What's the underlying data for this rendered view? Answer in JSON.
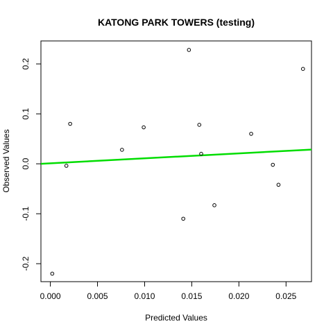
{
  "chart_data": {
    "type": "scatter",
    "title": "KATONG PARK TOWERS (testing)",
    "xlabel": "Predicted Values",
    "ylabel": "Observed Values",
    "xlim": [
      -0.001,
      0.0277
    ],
    "ylim": [
      -0.236,
      0.246
    ],
    "x_ticks": [
      0.0,
      0.005,
      0.01,
      0.015,
      0.02,
      0.025
    ],
    "x_tick_labels": [
      "0.000",
      "0.005",
      "0.010",
      "0.015",
      "0.020",
      "0.025"
    ],
    "y_ticks": [
      -0.2,
      -0.1,
      0.0,
      0.1,
      0.2
    ],
    "y_tick_labels": [
      "-0.2",
      "-0.1",
      "0.0",
      "0.1",
      "0.2"
    ],
    "grid": false,
    "points": [
      {
        "x": 0.0002,
        "y": -0.22
      },
      {
        "x": 0.0017,
        "y": -0.004
      },
      {
        "x": 0.0021,
        "y": 0.08
      },
      {
        "x": 0.0076,
        "y": 0.028
      },
      {
        "x": 0.0099,
        "y": 0.073
      },
      {
        "x": 0.0141,
        "y": -0.11
      },
      {
        "x": 0.0147,
        "y": 0.228
      },
      {
        "x": 0.0158,
        "y": 0.078
      },
      {
        "x": 0.016,
        "y": 0.02
      },
      {
        "x": 0.0174,
        "y": -0.083
      },
      {
        "x": 0.0213,
        "y": 0.06
      },
      {
        "x": 0.0236,
        "y": -0.002
      },
      {
        "x": 0.0242,
        "y": -0.042
      },
      {
        "x": 0.0268,
        "y": 0.19
      }
    ],
    "fit_line": {
      "x": [
        -0.001,
        0.0277
      ],
      "y": [
        0.0,
        0.0285
      ],
      "color": "#00dd00"
    }
  }
}
